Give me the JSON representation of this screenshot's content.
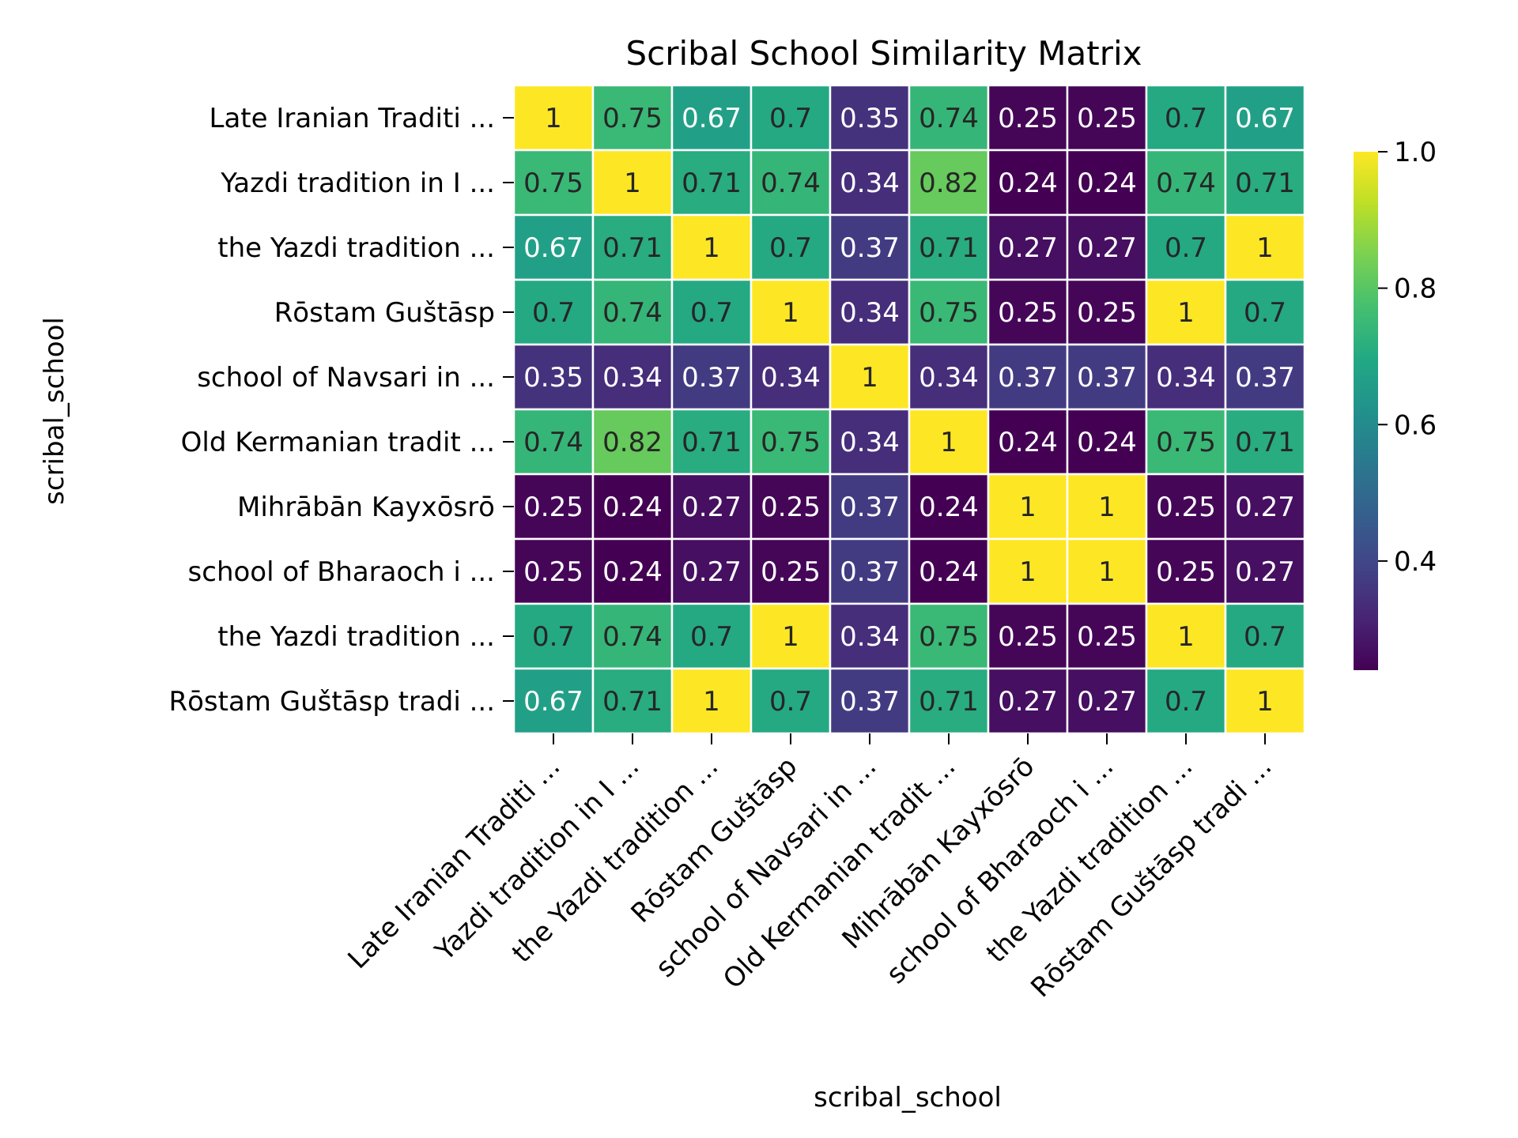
{
  "chart_data": {
    "type": "heatmap",
    "title": "Scribal School Similarity Matrix",
    "xlabel": "scribal_school",
    "ylabel": "scribal_school",
    "labels": [
      "Late Iranian Traditi ...",
      "Yazdi tradition in I ...",
      "the Yazdi tradition  ...",
      "Rōstam Guštāsp",
      "school of Navsari in ...",
      "Old Kermanian tradit ...",
      "Mihrābān Kayxōsrō",
      "school of Bharaoch i ...",
      "the Yazdi tradition  ...",
      "Rōstam Guštāsp tradi ..."
    ],
    "matrix": [
      [
        1,
        0.75,
        0.67,
        0.7,
        0.35,
        0.74,
        0.25,
        0.25,
        0.7,
        0.67
      ],
      [
        0.75,
        1,
        0.71,
        0.74,
        0.34,
        0.82,
        0.24,
        0.24,
        0.74,
        0.71
      ],
      [
        0.67,
        0.71,
        1,
        0.7,
        0.37,
        0.71,
        0.27,
        0.27,
        0.7,
        1
      ],
      [
        0.7,
        0.74,
        0.7,
        1,
        0.34,
        0.75,
        0.25,
        0.25,
        1,
        0.7
      ],
      [
        0.35,
        0.34,
        0.37,
        0.34,
        1,
        0.34,
        0.37,
        0.37,
        0.34,
        0.37
      ],
      [
        0.74,
        0.82,
        0.71,
        0.75,
        0.34,
        1,
        0.24,
        0.24,
        0.75,
        0.71
      ],
      [
        0.25,
        0.24,
        0.27,
        0.25,
        0.37,
        0.24,
        1,
        1,
        0.25,
        0.27
      ],
      [
        0.25,
        0.24,
        0.27,
        0.25,
        0.37,
        0.24,
        1,
        1,
        0.25,
        0.27
      ],
      [
        0.7,
        0.74,
        0.7,
        1,
        0.34,
        0.75,
        0.25,
        0.25,
        1,
        0.7
      ],
      [
        0.67,
        0.71,
        1,
        0.7,
        0.37,
        0.71,
        0.27,
        0.27,
        0.7,
        1
      ]
    ],
    "colormap": "viridis",
    "vmin": 0.24,
    "vmax": 1.0,
    "colorbar": {
      "ticks": [
        0.4,
        0.6,
        0.8,
        1.0
      ],
      "tick_labels": [
        "0.4",
        "0.6",
        "0.8",
        "1.0"
      ],
      "placement": "right"
    },
    "cell_border_color": "#ffffff",
    "annotated": true
  }
}
